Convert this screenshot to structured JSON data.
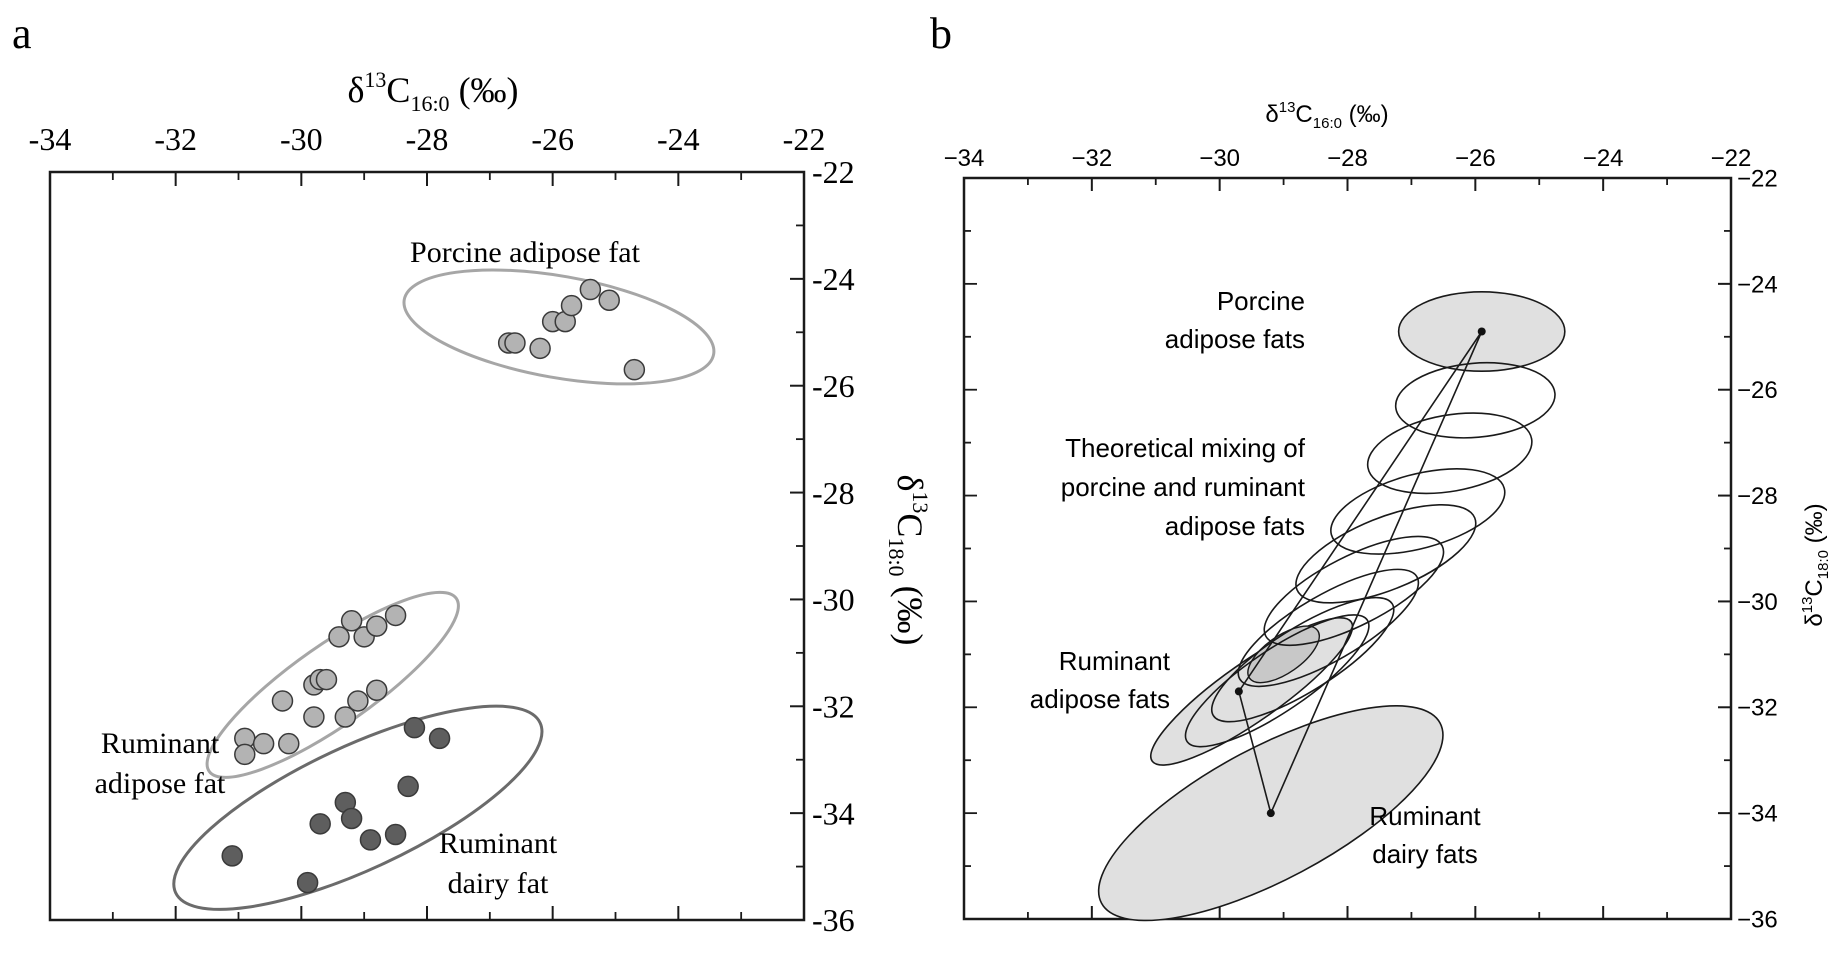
{
  "chart_data": [
    {
      "panel": "a",
      "type": "scatter",
      "xlabel": "δ13C16:0 (‰)",
      "ylabel": "δ13C18:0 (‰)",
      "xlim": [
        -34,
        -22
      ],
      "ylim": [
        -36,
        -22
      ],
      "xticks": [
        "-34",
        "-32",
        "-30",
        "-28",
        "-26",
        "-24",
        "-22"
      ],
      "yticks": [
        "-22",
        "-24",
        "-26",
        "-28",
        "-30",
        "-32",
        "-34",
        "-36"
      ],
      "groups": [
        {
          "label": "Porcine adipose fat",
          "color": "#b3b3b3",
          "ellipse_color": "#a6a6a6",
          "ellipse": {
            "cx": -25.9,
            "cy": -24.9,
            "rx": 2.5,
            "ry": 0.95,
            "angle_deg": 10
          },
          "points": [
            [
              -26.7,
              -25.2
            ],
            [
              -26.6,
              -25.2
            ],
            [
              -26.2,
              -25.3
            ],
            [
              -26.0,
              -24.8
            ],
            [
              -25.8,
              -24.8
            ],
            [
              -25.7,
              -24.5
            ],
            [
              -25.4,
              -24.2
            ],
            [
              -25.1,
              -24.4
            ],
            [
              -24.7,
              -25.7
            ]
          ]
        },
        {
          "label": "Ruminant adipose fat",
          "color": "#b3b3b3",
          "ellipse_color": "#a6a6a6",
          "ellipse": {
            "cx": -29.5,
            "cy": -31.6,
            "rx": 2.4,
            "ry": 0.75,
            "angle_deg": -35
          },
          "points": [
            [
              -30.9,
              -32.6
            ],
            [
              -30.9,
              -32.9
            ],
            [
              -30.6,
              -32.7
            ],
            [
              -30.2,
              -32.7
            ],
            [
              -30.3,
              -31.9
            ],
            [
              -29.8,
              -32.2
            ],
            [
              -29.8,
              -31.6
            ],
            [
              -29.7,
              -31.5
            ],
            [
              -29.6,
              -31.5
            ],
            [
              -29.3,
              -32.2
            ],
            [
              -29.1,
              -31.9
            ],
            [
              -29.4,
              -30.7
            ],
            [
              -29.2,
              -30.4
            ],
            [
              -29.0,
              -30.7
            ],
            [
              -28.8,
              -31.7
            ],
            [
              -28.8,
              -30.5
            ],
            [
              -28.5,
              -30.3
            ]
          ]
        },
        {
          "label": "Ruminant dairy fat",
          "color": "#5e5e5e",
          "ellipse_color": "#6b6b6b",
          "ellipse": {
            "cx": -29.1,
            "cy": -33.9,
            "rx": 3.2,
            "ry": 1.15,
            "angle_deg": -25
          },
          "points": [
            [
              -31.1,
              -34.8
            ],
            [
              -29.9,
              -35.3
            ],
            [
              -29.7,
              -34.2
            ],
            [
              -29.3,
              -33.8
            ],
            [
              -29.2,
              -34.1
            ],
            [
              -28.9,
              -34.5
            ],
            [
              -28.5,
              -34.4
            ],
            [
              -28.3,
              -33.5
            ],
            [
              -28.2,
              -32.4
            ],
            [
              -27.8,
              -32.6
            ]
          ]
        }
      ]
    },
    {
      "panel": "b",
      "type": "scatter",
      "xlabel": "δ13C16:0 (‰)",
      "ylabel": "δ13C18:0 (‰)",
      "xlim": [
        -34,
        -22
      ],
      "ylim": [
        -36,
        -22
      ],
      "xticks": [
        "−34",
        "−32",
        "−30",
        "−28",
        "−26",
        "−24",
        "−22"
      ],
      "yticks": [
        "−22",
        "−24",
        "−26",
        "−28",
        "−30",
        "−32",
        "−34",
        "−36"
      ],
      "groups": [
        {
          "label": "Porcine adipose fats",
          "centroid": [
            -25.9,
            -24.9
          ],
          "ellipse": {
            "cx": -25.9,
            "cy": -24.9,
            "rx": 1.3,
            "ry": 0.75,
            "angle_deg": 0
          },
          "fill": "#e0e0e0"
        },
        {
          "label": "Ruminant adipose fats",
          "centroid": [
            -29.7,
            -31.7
          ],
          "ellipse": {
            "cx": -29.5,
            "cy": -31.7,
            "rx": 1.9,
            "ry": 0.55,
            "angle_deg": -35
          },
          "fill": "#e0e0e0"
        },
        {
          "label": "Ruminant dairy fats",
          "centroid": [
            -29.2,
            -34.0
          ],
          "ellipse": {
            "cx": -29.2,
            "cy": -34.0,
            "rx": 3.0,
            "ry": 1.25,
            "angle_deg": -28
          },
          "fill": "#e0e0e0"
        }
      ],
      "mixing_label": "Theoretical mixing of porcine and ruminant adipose fats",
      "mixing_ellipses": [
        {
          "cx": -26.0,
          "cy": -26.2,
          "rx": 1.25,
          "ry": 0.7,
          "angle_deg": -5
        },
        {
          "cx": -26.4,
          "cy": -27.2,
          "rx": 1.3,
          "ry": 0.72,
          "angle_deg": -10
        },
        {
          "cx": -26.9,
          "cy": -28.3,
          "rx": 1.4,
          "ry": 0.7,
          "angle_deg": -15
        },
        {
          "cx": -27.4,
          "cy": -29.1,
          "rx": 1.5,
          "ry": 0.68,
          "angle_deg": -22
        },
        {
          "cx": -27.9,
          "cy": -29.8,
          "rx": 1.55,
          "ry": 0.65,
          "angle_deg": -27
        },
        {
          "cx": -28.3,
          "cy": -30.5,
          "rx": 1.6,
          "ry": 0.62,
          "angle_deg": -30
        },
        {
          "cx": -28.7,
          "cy": -31.1,
          "rx": 1.65,
          "ry": 0.6,
          "angle_deg": -32
        },
        {
          "cx": -29.1,
          "cy": -31.5,
          "rx": 1.7,
          "ry": 0.58,
          "angle_deg": -34
        }
      ],
      "lines": [
        [
          [
            -29.7,
            -31.7
          ],
          [
            -29.2,
            -34.0
          ]
        ],
        [
          [
            -29.2,
            -34.0
          ],
          [
            -25.9,
            -24.9
          ]
        ],
        [
          [
            -29.7,
            -31.7
          ],
          [
            -25.9,
            -24.9
          ]
        ]
      ],
      "inner_ellipse": {
        "cx": -29.0,
        "cy": -31.0,
        "rx": 0.65,
        "ry": 0.35,
        "angle_deg": -35,
        "fill": "#c8c8c8"
      }
    }
  ],
  "labels": {
    "panel_a": "a",
    "panel_b": "b",
    "a_porcine": "Porcine adipose fat",
    "a_ruminant_1": "Ruminant",
    "a_ruminant_2": "adipose fat",
    "a_dairy_1": "Ruminant",
    "a_dairy_2": "dairy fat",
    "b_porcine_1": "Porcine",
    "b_porcine_2": "adipose fats",
    "b_mix_1": "Theoretical mixing of",
    "b_mix_2": "porcine and ruminant",
    "b_mix_3": "adipose fats",
    "b_rum_1": "Ruminant",
    "b_rum_2": "adipose fats",
    "b_dairy_1": "Ruminant",
    "b_dairy_2": "dairy fats",
    "delta": "δ",
    "sup13": "13",
    "c": "C",
    "sub160": "16:0",
    "sub180": "18:0",
    "permil": " (‰)"
  }
}
